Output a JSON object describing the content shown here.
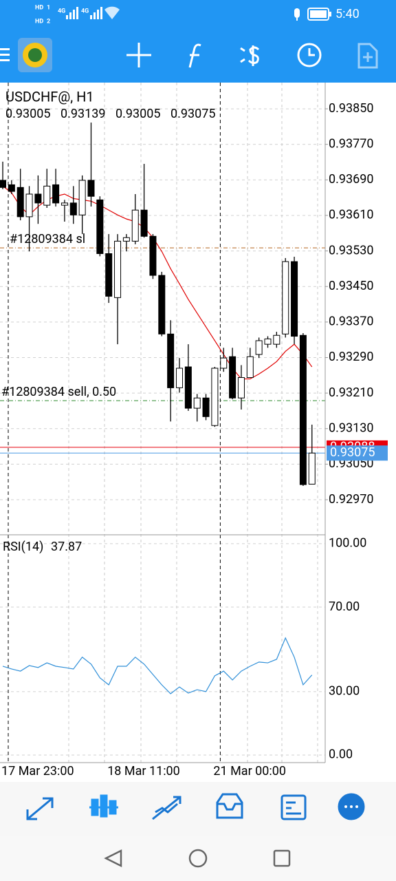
{
  "status_bar": {
    "sim1": "HD",
    "sim1_slot": "1",
    "sim2": "HD",
    "sim2_slot": "2",
    "net1": "4G",
    "net2": "4G",
    "time": "5:40"
  },
  "chart_data": {
    "type": "candlestick",
    "title": "USDCHF@, H1",
    "categories": [
      "17 Mar 23:00",
      null,
      null,
      null,
      null,
      null,
      null,
      null,
      null,
      null,
      null,
      null,
      "18 Mar 11:00",
      null,
      null,
      null,
      null,
      null,
      null,
      null,
      null,
      null,
      null,
      null,
      "21 Mar 00:00",
      null,
      null,
      null,
      null,
      null,
      null,
      null,
      null,
      null,
      null,
      null
    ],
    "open": [
      0.93689,
      0.93679,
      0.93673,
      0.93607,
      0.93658,
      0.93633,
      0.93679,
      0.93633,
      0.93638,
      0.93611,
      0.93689,
      0.93645,
      0.93524,
      0.93425,
      0.93552,
      0.93552,
      0.93622,
      0.93563,
      0.93475,
      0.93343,
      0.93222,
      0.93269,
      0.93176,
      0.93199,
      0.93137,
      0.93266,
      0.93292,
      0.93199,
      0.93245,
      0.93297,
      0.9332,
      0.9332,
      0.93343,
      0.93506,
      0.9334,
      0.93005
    ],
    "high": [
      0.93731,
      0.93689,
      0.93715,
      0.93676,
      0.937,
      0.93715,
      0.93715,
      0.93645,
      0.93676,
      0.937,
      0.93819,
      0.93653,
      0.93568,
      0.93568,
      0.93568,
      0.93658,
      0.93726,
      0.93568,
      0.93483,
      0.93374,
      0.93289,
      0.9332,
      0.93208,
      0.93208,
      0.93269,
      0.93312,
      0.93312,
      0.93273,
      0.93312,
      0.93335,
      0.93338,
      0.93348,
      0.93514,
      0.93517,
      0.93345,
      0.93139
    ],
    "low": [
      0.93669,
      0.93658,
      0.93599,
      0.93529,
      0.93591,
      0.93627,
      0.9363,
      0.93596,
      0.93591,
      0.93568,
      0.9363,
      0.93518,
      0.93413,
      0.9332,
      0.93529,
      0.93545,
      0.9356,
      0.93467,
      0.93338,
      0.93146,
      0.93211,
      0.9317,
      0.93146,
      0.93149,
      0.93134,
      0.93258,
      0.93196,
      0.93173,
      0.93245,
      0.93289,
      0.93312,
      0.93312,
      0.93335,
      0.9332,
      0.93001,
      0.93005
    ],
    "close": [
      0.93673,
      0.93664,
      0.93607,
      0.93658,
      0.93638,
      0.93676,
      0.93638,
      0.93638,
      0.93611,
      0.93689,
      0.93653,
      0.93524,
      0.93428,
      0.93552,
      0.9356,
      0.93622,
      0.93563,
      0.93475,
      0.93343,
      0.93222,
      0.93266,
      0.93176,
      0.93199,
      0.93157,
      0.93266,
      0.93289,
      0.93199,
      0.93245,
      0.93292,
      0.93328,
      0.93332,
      0.9334,
      0.93506,
      0.93338,
      0.93004,
      0.93075
    ],
    "up_color": "#ffffff",
    "down_color": "#000000",
    "ma": {
      "color": "#e00000",
      "values": [
        0.93676,
        0.93661,
        0.9363,
        0.93611,
        0.9363,
        0.93645,
        0.93653,
        0.93658,
        0.93648,
        0.93645,
        0.93642,
        0.93633,
        0.93622,
        0.93611,
        0.93602,
        0.93596,
        0.93583,
        0.9356,
        0.93529,
        0.9349,
        0.93456,
        0.93421,
        0.9339,
        0.93359,
        0.93328,
        0.93297,
        0.93266,
        0.93242,
        0.93242,
        0.93253,
        0.93266,
        0.93281,
        0.93304,
        0.9332,
        0.93297,
        0.93269
      ]
    },
    "ylim": [
      0.92891,
      0.93909
    ],
    "yticks": [
      {
        "value": 0.9385,
        "label": "0.93850"
      },
      {
        "value": 0.9377,
        "label": "0.93770"
      },
      {
        "value": 0.9369,
        "label": "0.93690"
      },
      {
        "value": 0.9361,
        "label": "0.93610"
      },
      {
        "value": 0.9353,
        "label": "0.93530"
      },
      {
        "value": 0.9345,
        "label": "0.93450"
      },
      {
        "value": 0.9337,
        "label": "0.93370"
      },
      {
        "value": 0.9329,
        "label": "0.93290"
      },
      {
        "value": 0.9321,
        "label": "0.93210"
      },
      {
        "value": 0.9313,
        "label": "0.93130"
      },
      {
        "value": 0.9305,
        "label": "0.93050"
      },
      {
        "value": 0.9297,
        "label": "0.92970"
      }
    ],
    "grid": true,
    "orders": [
      {
        "label": "#12809384 sl",
        "value": 0.93537,
        "color": "#b5651d"
      },
      {
        "label": "#12809384 sell, 0.50",
        "value": 0.93193,
        "color": "#2e8b2e"
      }
    ],
    "ask": {
      "value": 0.93088,
      "color": "#e8000b"
    },
    "bid_color": "#4d9be6",
    "rsi": {
      "title": "RSI(14)",
      "color": "#2f8fd8",
      "ylim": [
        -3.6,
        104.2
      ],
      "yticks": [
        {
          "value": 100,
          "label": "100.00"
        },
        {
          "value": 70,
          "label": "70.00"
        },
        {
          "value": 30,
          "label": "30.00"
        },
        {
          "value": 0,
          "label": "0.00"
        }
      ],
      "values": [
        42.0,
        40.7,
        39.7,
        42.3,
        41.4,
        43.6,
        42.0,
        41.4,
        40.7,
        46.3,
        43.0,
        36.5,
        33.2,
        42.0,
        42.0,
        46.3,
        43.0,
        38.1,
        33.2,
        29.0,
        32.2,
        29.3,
        30.9,
        30.0,
        37.5,
        39.7,
        35.5,
        39.7,
        42.0,
        44.0,
        43.6,
        45.3,
        55.4,
        46.3,
        33.2,
        37.87
      ]
    }
  }
}
